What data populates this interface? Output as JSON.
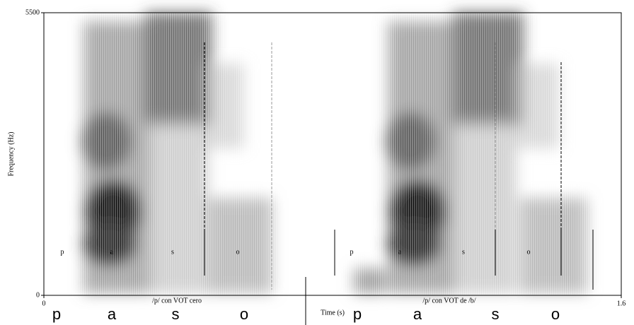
{
  "chart_data": {
    "type": "spectrogram",
    "ylabel": "Frequency (Hz)",
    "xlabel": "Time (s)",
    "ylim": [
      0,
      5500
    ],
    "yticks": [
      0,
      5500
    ],
    "xlim": [
      0,
      1.6
    ],
    "xticks": [
      0,
      1.6
    ],
    "panels": [
      {
        "caption": "/p/ con VOT cero",
        "segments": [
          "p",
          "a",
          "s",
          "o"
        ],
        "letters": [
          "p",
          "a",
          "s",
          "o"
        ]
      },
      {
        "caption": "/p/ con VOT de /b/",
        "segments": [
          "p",
          "a",
          "s",
          "o"
        ],
        "letters": [
          "p",
          "a",
          "s",
          "o"
        ]
      }
    ]
  }
}
